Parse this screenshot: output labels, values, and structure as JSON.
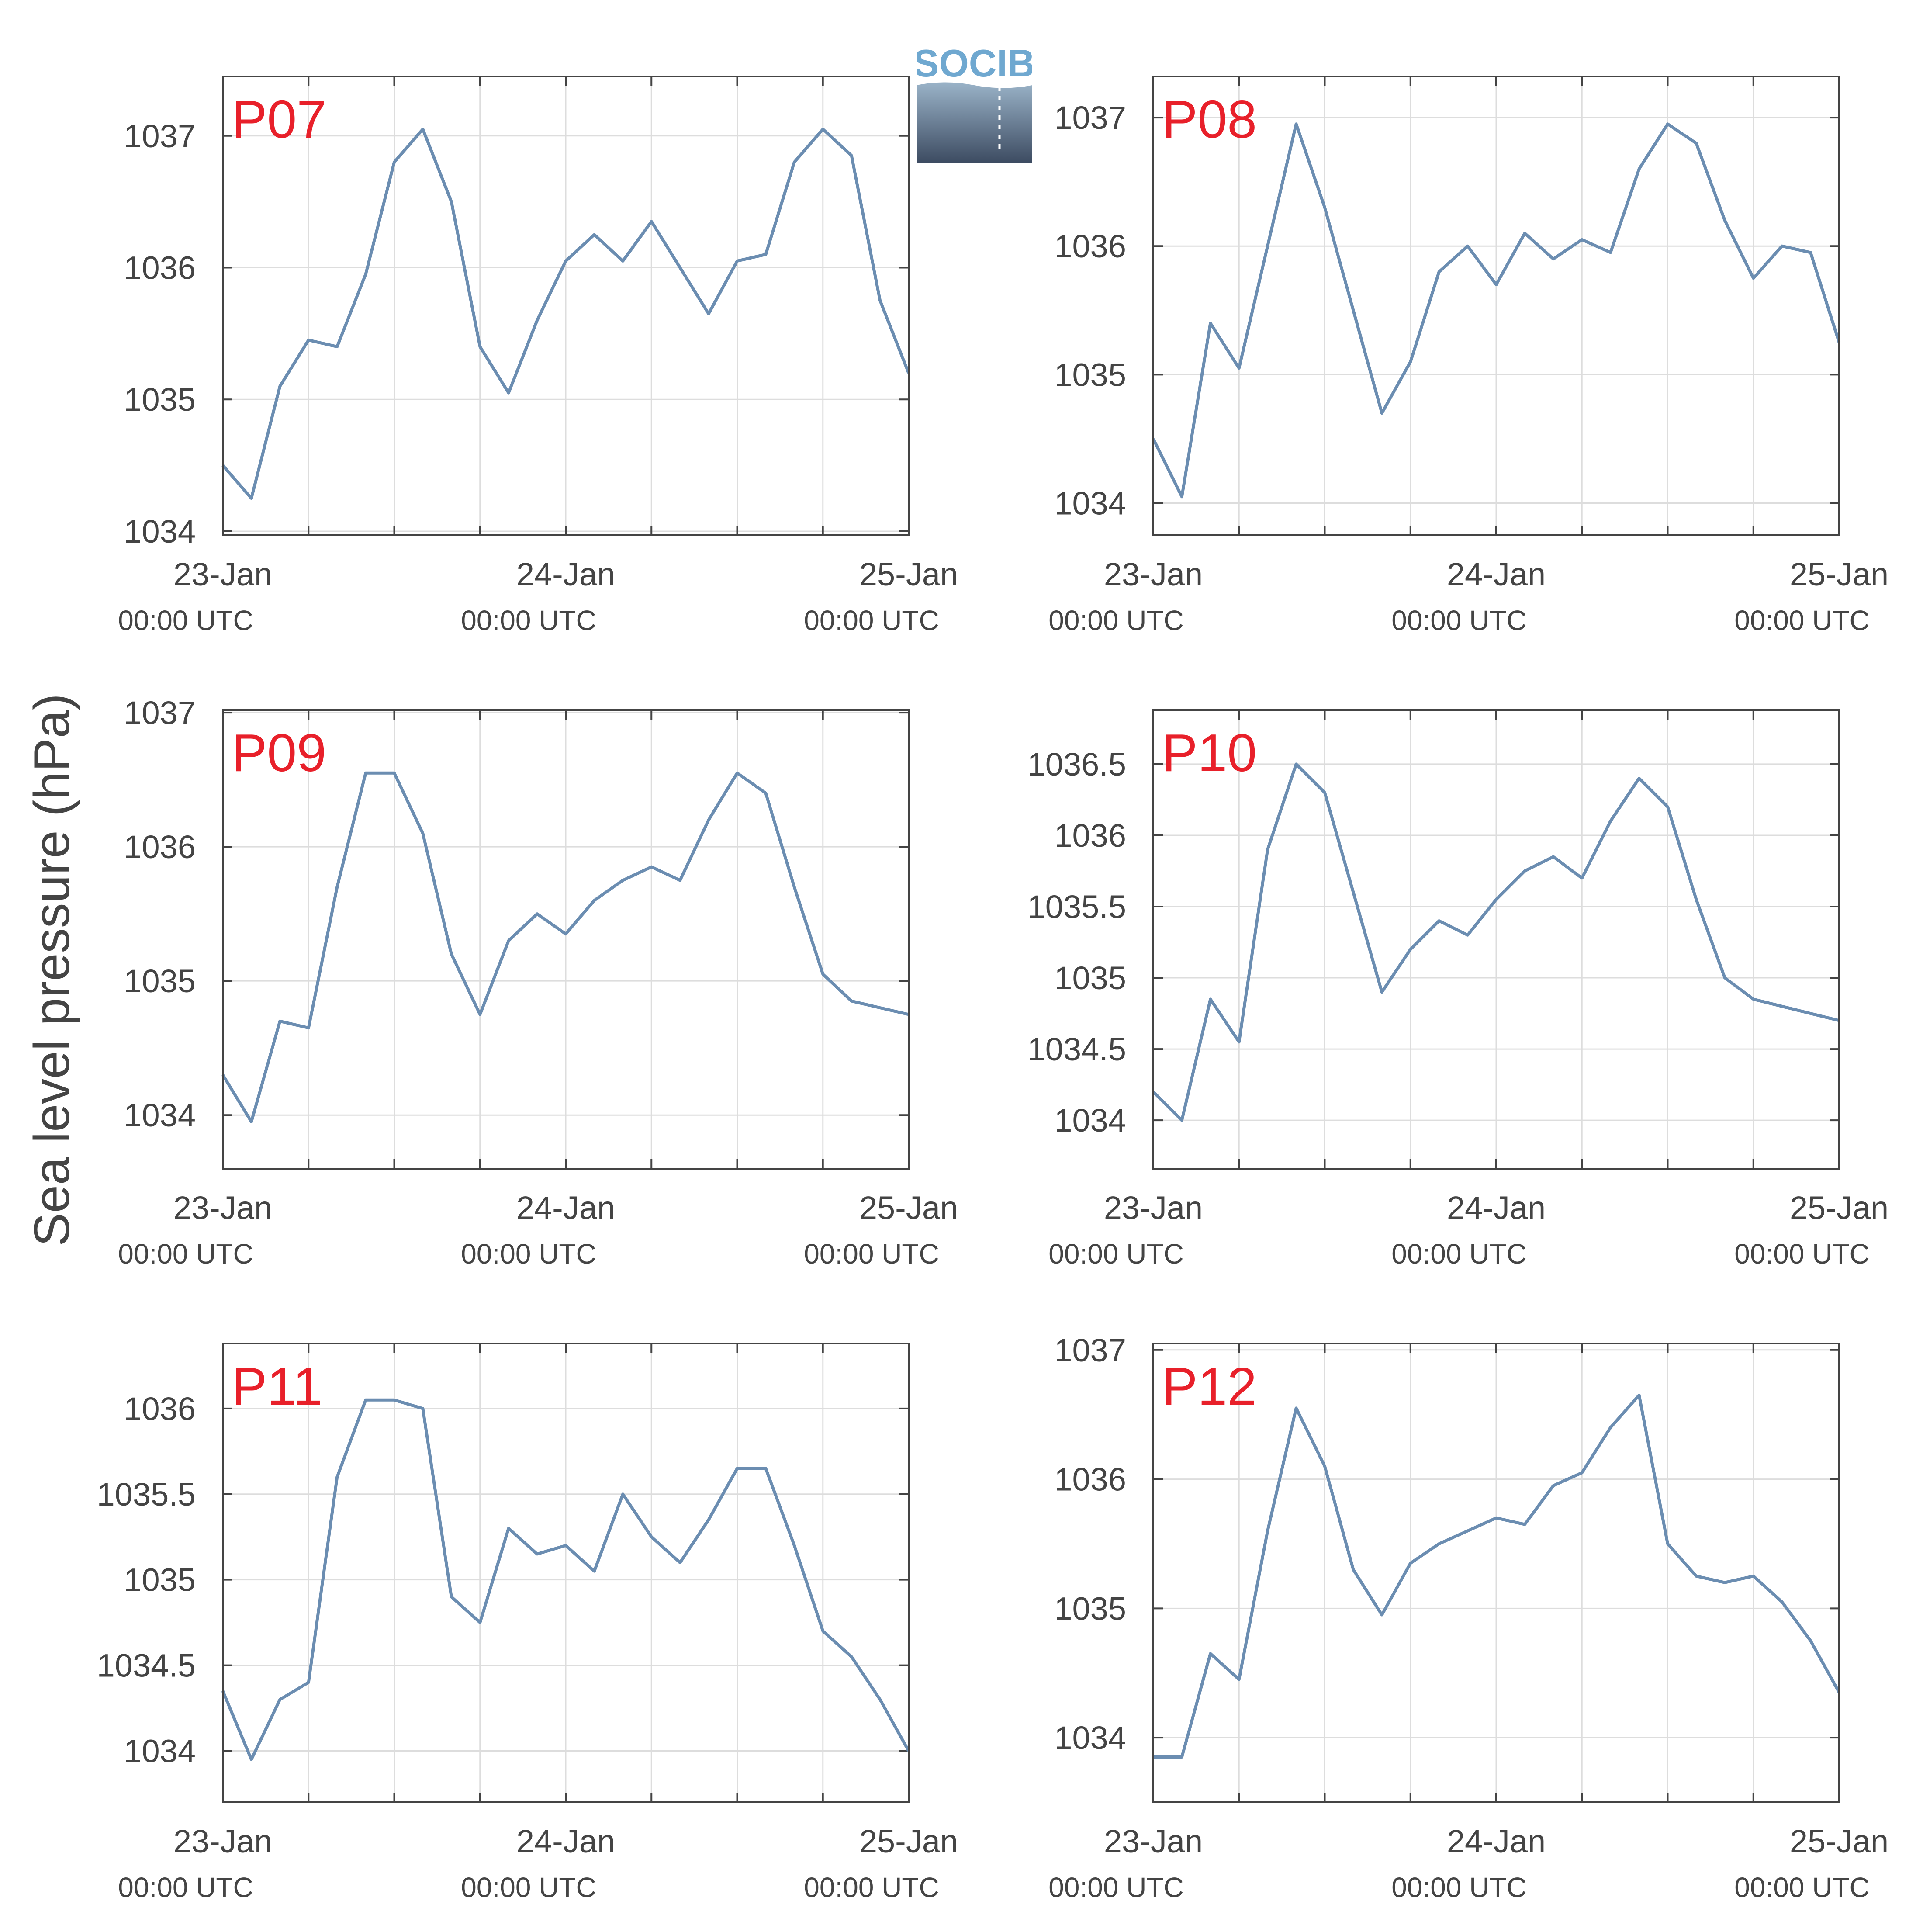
{
  "figure": {
    "ylabel": "Sea level pressure (hPa)",
    "logo_text": "SOCIB",
    "line_color": "#6b8db1",
    "label_color": "#e8202a",
    "x_ticks": [
      {
        "date": "23-Jan",
        "time": "00:00 UTC"
      },
      {
        "date": "24-Jan",
        "time": "00:00 UTC"
      },
      {
        "date": "25-Jan",
        "time": "00:00 UTC"
      }
    ]
  },
  "chart_data": [
    {
      "type": "line",
      "label": "P07",
      "xlim": [
        "2024-01-23 00:00",
        "2024-01-25 00:00"
      ],
      "ylim": [
        1033.97,
        1037.45
      ],
      "yticks": [
        1034,
        1035,
        1036,
        1037
      ],
      "ytick_labels": [
        "1034",
        "1035",
        "1036",
        "1037"
      ],
      "x": [
        "2024-01-23 00:00",
        "2024-01-23 02:00",
        "2024-01-23 04:00",
        "2024-01-23 06:00",
        "2024-01-23 08:00",
        "2024-01-23 10:00",
        "2024-01-23 12:00",
        "2024-01-23 14:00",
        "2024-01-23 16:00",
        "2024-01-23 18:00",
        "2024-01-23 20:00",
        "2024-01-23 22:00",
        "2024-01-24 00:00",
        "2024-01-24 02:00",
        "2024-01-24 04:00",
        "2024-01-24 06:00",
        "2024-01-24 08:00",
        "2024-01-24 10:00",
        "2024-01-24 12:00",
        "2024-01-24 14:00",
        "2024-01-24 16:00",
        "2024-01-24 18:00",
        "2024-01-24 20:00",
        "2024-01-24 22:00",
        "2024-01-25 00:00"
      ],
      "y": [
        1034.5,
        1034.25,
        1035.1,
        1035.45,
        1035.4,
        1035.95,
        1036.8,
        1037.05,
        1036.5,
        1035.4,
        1035.05,
        1035.6,
        1036.05,
        1036.25,
        1036.05,
        1036.35,
        1036.0,
        1035.65,
        1036.05,
        1036.1,
        1036.8,
        1037.05,
        1036.85,
        1035.75,
        1035.2
      ]
    },
    {
      "type": "line",
      "label": "P08",
      "xlim": [
        "2024-01-23 00:00",
        "2024-01-25 00:00"
      ],
      "ylim": [
        1033.75,
        1037.32
      ],
      "yticks": [
        1034,
        1035,
        1036,
        1037
      ],
      "ytick_labels": [
        "1034",
        "1035",
        "1036",
        "1037"
      ],
      "x": [
        "2024-01-23 00:00",
        "2024-01-23 02:00",
        "2024-01-23 04:00",
        "2024-01-23 06:00",
        "2024-01-23 08:00",
        "2024-01-23 10:00",
        "2024-01-23 12:00",
        "2024-01-23 14:00",
        "2024-01-23 16:00",
        "2024-01-23 18:00",
        "2024-01-23 20:00",
        "2024-01-23 22:00",
        "2024-01-24 00:00",
        "2024-01-24 02:00",
        "2024-01-24 04:00",
        "2024-01-24 06:00",
        "2024-01-24 08:00",
        "2024-01-24 10:00",
        "2024-01-24 12:00",
        "2024-01-24 14:00",
        "2024-01-24 16:00",
        "2024-01-24 18:00",
        "2024-01-24 20:00",
        "2024-01-24 22:00",
        "2024-01-25 00:00"
      ],
      "y": [
        1034.5,
        1034.05,
        1035.4,
        1035.05,
        1036.0,
        1036.95,
        1036.3,
        1035.5,
        1034.7,
        1035.1,
        1035.8,
        1036.0,
        1035.7,
        1036.1,
        1035.9,
        1036.05,
        1035.95,
        1036.6,
        1036.95,
        1036.8,
        1036.2,
        1035.75,
        1036.0,
        1035.95,
        1035.25
      ]
    },
    {
      "type": "line",
      "label": "P09",
      "xlim": [
        "2024-01-23 00:00",
        "2024-01-25 00:00"
      ],
      "ylim": [
        1033.6,
        1037.02
      ],
      "yticks": [
        1034,
        1035,
        1036,
        1037
      ],
      "ytick_labels": [
        "1034",
        "1035",
        "1036",
        "1037"
      ],
      "x": [
        "2024-01-23 00:00",
        "2024-01-23 02:00",
        "2024-01-23 04:00",
        "2024-01-23 06:00",
        "2024-01-23 08:00",
        "2024-01-23 10:00",
        "2024-01-23 12:00",
        "2024-01-23 14:00",
        "2024-01-23 16:00",
        "2024-01-23 18:00",
        "2024-01-23 20:00",
        "2024-01-23 22:00",
        "2024-01-24 00:00",
        "2024-01-24 02:00",
        "2024-01-24 04:00",
        "2024-01-24 06:00",
        "2024-01-24 08:00",
        "2024-01-24 10:00",
        "2024-01-24 12:00",
        "2024-01-24 14:00",
        "2024-01-24 16:00",
        "2024-01-24 18:00",
        "2024-01-24 20:00",
        "2024-01-24 22:00",
        "2024-01-25 00:00"
      ],
      "y": [
        1034.3,
        1033.95,
        1034.7,
        1034.65,
        1035.7,
        1036.55,
        1036.55,
        1036.1,
        1035.2,
        1034.75,
        1035.3,
        1035.5,
        1035.35,
        1035.6,
        1035.75,
        1035.85,
        1035.75,
        1036.2,
        1036.55,
        1036.4,
        1035.7,
        1035.05,
        1034.85,
        1034.8,
        1034.75
      ]
    },
    {
      "type": "line",
      "label": "P10",
      "xlim": [
        "2024-01-23 00:00",
        "2024-01-25 00:00"
      ],
      "ylim": [
        1033.66,
        1036.88
      ],
      "yticks": [
        1034,
        1034.5,
        1035,
        1035.5,
        1036,
        1036.5
      ],
      "ytick_labels": [
        "1034",
        "1034.5",
        "1035",
        "1035.5",
        "1036",
        "1036.5"
      ],
      "x": [
        "2024-01-23 00:00",
        "2024-01-23 02:00",
        "2024-01-23 04:00",
        "2024-01-23 06:00",
        "2024-01-23 08:00",
        "2024-01-23 10:00",
        "2024-01-23 12:00",
        "2024-01-23 14:00",
        "2024-01-23 16:00",
        "2024-01-23 18:00",
        "2024-01-23 20:00",
        "2024-01-23 22:00",
        "2024-01-24 00:00",
        "2024-01-24 02:00",
        "2024-01-24 04:00",
        "2024-01-24 06:00",
        "2024-01-24 08:00",
        "2024-01-24 10:00",
        "2024-01-24 12:00",
        "2024-01-24 14:00",
        "2024-01-24 16:00",
        "2024-01-24 18:00",
        "2024-01-24 20:00",
        "2024-01-24 22:00",
        "2024-01-25 00:00"
      ],
      "y": [
        1034.2,
        1034.0,
        1034.85,
        1034.55,
        1035.9,
        1036.5,
        1036.3,
        1035.6,
        1034.9,
        1035.2,
        1035.4,
        1035.3,
        1035.55,
        1035.75,
        1035.85,
        1035.7,
        1036.1,
        1036.4,
        1036.2,
        1035.55,
        1035.0,
        1034.85,
        1034.8,
        1034.75,
        1034.7
      ]
    },
    {
      "type": "line",
      "label": "P11",
      "xlim": [
        "2024-01-23 00:00",
        "2024-01-25 00:00"
      ],
      "ylim": [
        1033.7,
        1036.38
      ],
      "yticks": [
        1034,
        1034.5,
        1035,
        1035.5,
        1036
      ],
      "ytick_labels": [
        "1034",
        "1034.5",
        "1035",
        "1035.5",
        "1036"
      ],
      "x": [
        "2024-01-23 00:00",
        "2024-01-23 02:00",
        "2024-01-23 04:00",
        "2024-01-23 06:00",
        "2024-01-23 08:00",
        "2024-01-23 10:00",
        "2024-01-23 12:00",
        "2024-01-23 14:00",
        "2024-01-23 16:00",
        "2024-01-23 18:00",
        "2024-01-23 20:00",
        "2024-01-23 22:00",
        "2024-01-24 00:00",
        "2024-01-24 02:00",
        "2024-01-24 04:00",
        "2024-01-24 06:00",
        "2024-01-24 08:00",
        "2024-01-24 10:00",
        "2024-01-24 12:00",
        "2024-01-24 14:00",
        "2024-01-24 16:00",
        "2024-01-24 18:00",
        "2024-01-24 20:00",
        "2024-01-24 22:00",
        "2024-01-25 00:00"
      ],
      "y": [
        1034.35,
        1033.95,
        1034.3,
        1034.4,
        1035.6,
        1036.05,
        1036.05,
        1036.0,
        1034.9,
        1034.75,
        1035.3,
        1035.15,
        1035.2,
        1035.05,
        1035.5,
        1035.25,
        1035.1,
        1035.35,
        1035.65,
        1035.65,
        1035.2,
        1034.7,
        1034.55,
        1034.3,
        1034.0
      ]
    },
    {
      "type": "line",
      "label": "P12",
      "xlim": [
        "2024-01-23 00:00",
        "2024-01-25 00:00"
      ],
      "ylim": [
        1033.5,
        1037.05
      ],
      "yticks": [
        1034,
        1035,
        1036,
        1037
      ],
      "ytick_labels": [
        "1034",
        "1035",
        "1036",
        "1037"
      ],
      "x": [
        "2024-01-23 00:00",
        "2024-01-23 02:00",
        "2024-01-23 04:00",
        "2024-01-23 06:00",
        "2024-01-23 08:00",
        "2024-01-23 10:00",
        "2024-01-23 12:00",
        "2024-01-23 14:00",
        "2024-01-23 16:00",
        "2024-01-23 18:00",
        "2024-01-23 20:00",
        "2024-01-23 22:00",
        "2024-01-24 00:00",
        "2024-01-24 02:00",
        "2024-01-24 04:00",
        "2024-01-24 06:00",
        "2024-01-24 08:00",
        "2024-01-24 10:00",
        "2024-01-24 12:00",
        "2024-01-24 14:00",
        "2024-01-24 16:00",
        "2024-01-24 18:00",
        "2024-01-24 20:00",
        "2024-01-24 22:00",
        "2024-01-25 00:00"
      ],
      "y": [
        1033.85,
        1033.85,
        1034.65,
        1034.45,
        1035.6,
        1036.55,
        1036.1,
        1035.3,
        1034.95,
        1035.35,
        1035.5,
        1035.6,
        1035.7,
        1035.65,
        1035.95,
        1036.05,
        1036.4,
        1036.65,
        1035.5,
        1035.25,
        1035.2,
        1035.25,
        1035.05,
        1034.75,
        1034.35
      ]
    }
  ]
}
